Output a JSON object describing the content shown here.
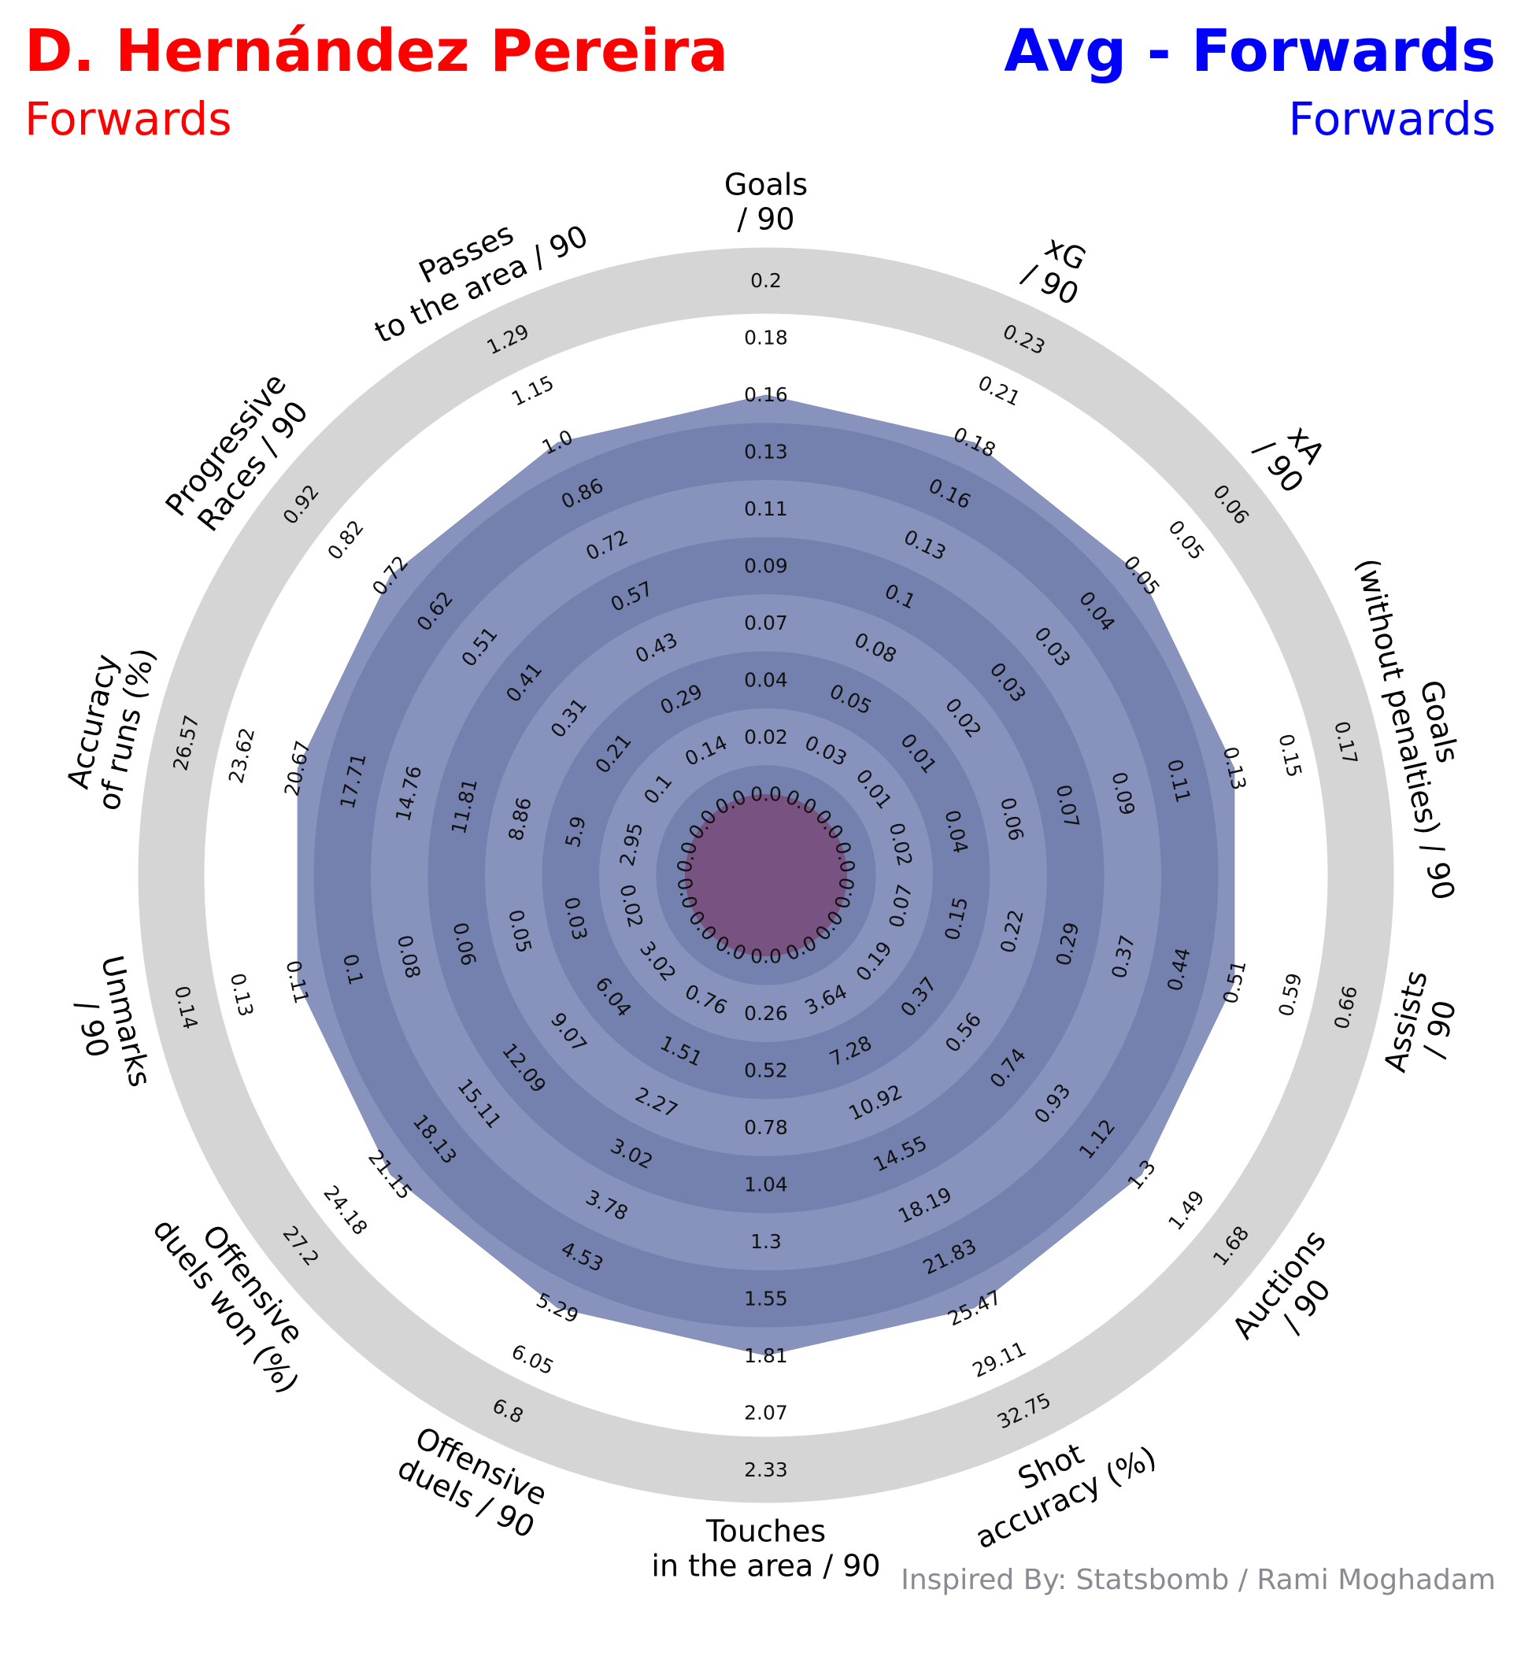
{
  "header": {
    "left_title": "D. Hernández Pereira",
    "left_subtitle": "Forwards",
    "right_title": "Avg - Forwards",
    "right_subtitle": "Forwards"
  },
  "credit": "Inspired By: Statsbomb / Rami Moghadam",
  "colors": {
    "left": "#ff0000",
    "right": "#0000ff",
    "outer_ring": "#d5d5d5",
    "band_light": "#8792bd",
    "band_dark": "#7480ad",
    "player_fill": "#7c2e5d",
    "credit": "#8a8a92"
  },
  "chart_data": {
    "type": "radar",
    "ring_count": 10,
    "params": [
      {
        "label": [
          "Goals",
          "/ 90"
        ],
        "ticks": [
          "0.0",
          "0.02",
          "0.04",
          "0.07",
          "0.09",
          "0.11",
          "0.13",
          "0.16",
          "0.18",
          "0.2"
        ]
      },
      {
        "label": [
          "xG",
          "/ 90"
        ],
        "ticks": [
          "0.0",
          "0.03",
          "0.05",
          "0.08",
          "0.1",
          "0.13",
          "0.16",
          "0.18",
          "0.21",
          "0.23"
        ]
      },
      {
        "label": [
          "xA",
          "/ 90"
        ],
        "ticks": [
          "0.0",
          "0.01",
          "0.01",
          "0.02",
          "0.03",
          "0.03",
          "0.04",
          "0.05",
          "0.05",
          "0.06"
        ]
      },
      {
        "label": [
          "Goals",
          "(without penalties) / 90"
        ],
        "ticks": [
          "0.0",
          "0.02",
          "0.04",
          "0.06",
          "0.07",
          "0.09",
          "0.11",
          "0.13",
          "0.15",
          "0.17"
        ]
      },
      {
        "label": [
          "Assists",
          "/ 90"
        ],
        "ticks": [
          "0.0",
          "0.07",
          "0.15",
          "0.22",
          "0.29",
          "0.37",
          "0.44",
          "0.51",
          "0.59",
          "0.66"
        ]
      },
      {
        "label": [
          "Auctions",
          "/ 90"
        ],
        "ticks": [
          "0.0",
          "0.19",
          "0.37",
          "0.56",
          "0.74",
          "0.93",
          "1.12",
          "1.3",
          "1.49",
          "1.68"
        ]
      },
      {
        "label": [
          "Shot",
          "accuracy (%)"
        ],
        "ticks": [
          "0.0",
          "3.64",
          "7.28",
          "10.92",
          "14.55",
          "18.19",
          "21.83",
          "25.47",
          "29.11",
          "32.75"
        ]
      },
      {
        "label": [
          "Touches",
          "in the area / 90"
        ],
        "ticks": [
          "0.0",
          "0.26",
          "0.52",
          "0.78",
          "1.04",
          "1.3",
          "1.55",
          "1.81",
          "2.07",
          "2.33"
        ]
      },
      {
        "label": [
          "Offensive",
          "duels / 90"
        ],
        "ticks": [
          "0.0",
          "0.76",
          "1.51",
          "2.27",
          "3.02",
          "3.78",
          "4.53",
          "5.29",
          "6.05",
          "6.8"
        ]
      },
      {
        "label": [
          "Offensive",
          "duels won (%)"
        ],
        "ticks": [
          "0.0",
          "3.02",
          "6.04",
          "9.07",
          "12.09",
          "15.11",
          "18.13",
          "21.15",
          "24.18",
          "27.2"
        ]
      },
      {
        "label": [
          "Unmarks",
          "/ 90"
        ],
        "ticks": [
          "0.0",
          "0.02",
          "0.03",
          "0.05",
          "0.06",
          "0.08",
          "0.1",
          "0.11",
          "0.13",
          "0.14"
        ]
      },
      {
        "label": [
          "Accuracy",
          "of runs (%)"
        ],
        "ticks": [
          "0.0",
          "2.95",
          "5.9",
          "8.86",
          "11.81",
          "14.76",
          "17.71",
          "20.67",
          "23.62",
          "26.57"
        ]
      },
      {
        "label": [
          "Progressive",
          "Races / 90"
        ],
        "ticks": [
          "0.0",
          "0.1",
          "0.21",
          "0.31",
          "0.41",
          "0.51",
          "0.62",
          "0.72",
          "0.82",
          "0.92"
        ]
      },
      {
        "label": [
          "Passes",
          "to the area / 90"
        ],
        "ticks": [
          "0.0",
          "0.14",
          "0.29",
          "0.43",
          "0.57",
          "0.72",
          "0.86",
          "1.0",
          "1.15",
          "1.29"
        ]
      }
    ],
    "series": [
      {
        "name": "D. Hernández Pereira",
        "values": [
          0,
          0,
          0,
          0,
          0,
          0,
          0,
          0,
          0,
          0,
          0,
          0,
          0,
          0
        ]
      },
      {
        "name": "Avg - Forwards",
        "values": [
          0.16,
          0.18,
          0.05,
          0.13,
          0.51,
          1.3,
          25.47,
          1.81,
          5.29,
          21.15,
          0.11,
          20.67,
          0.72,
          1.0
        ]
      }
    ]
  }
}
